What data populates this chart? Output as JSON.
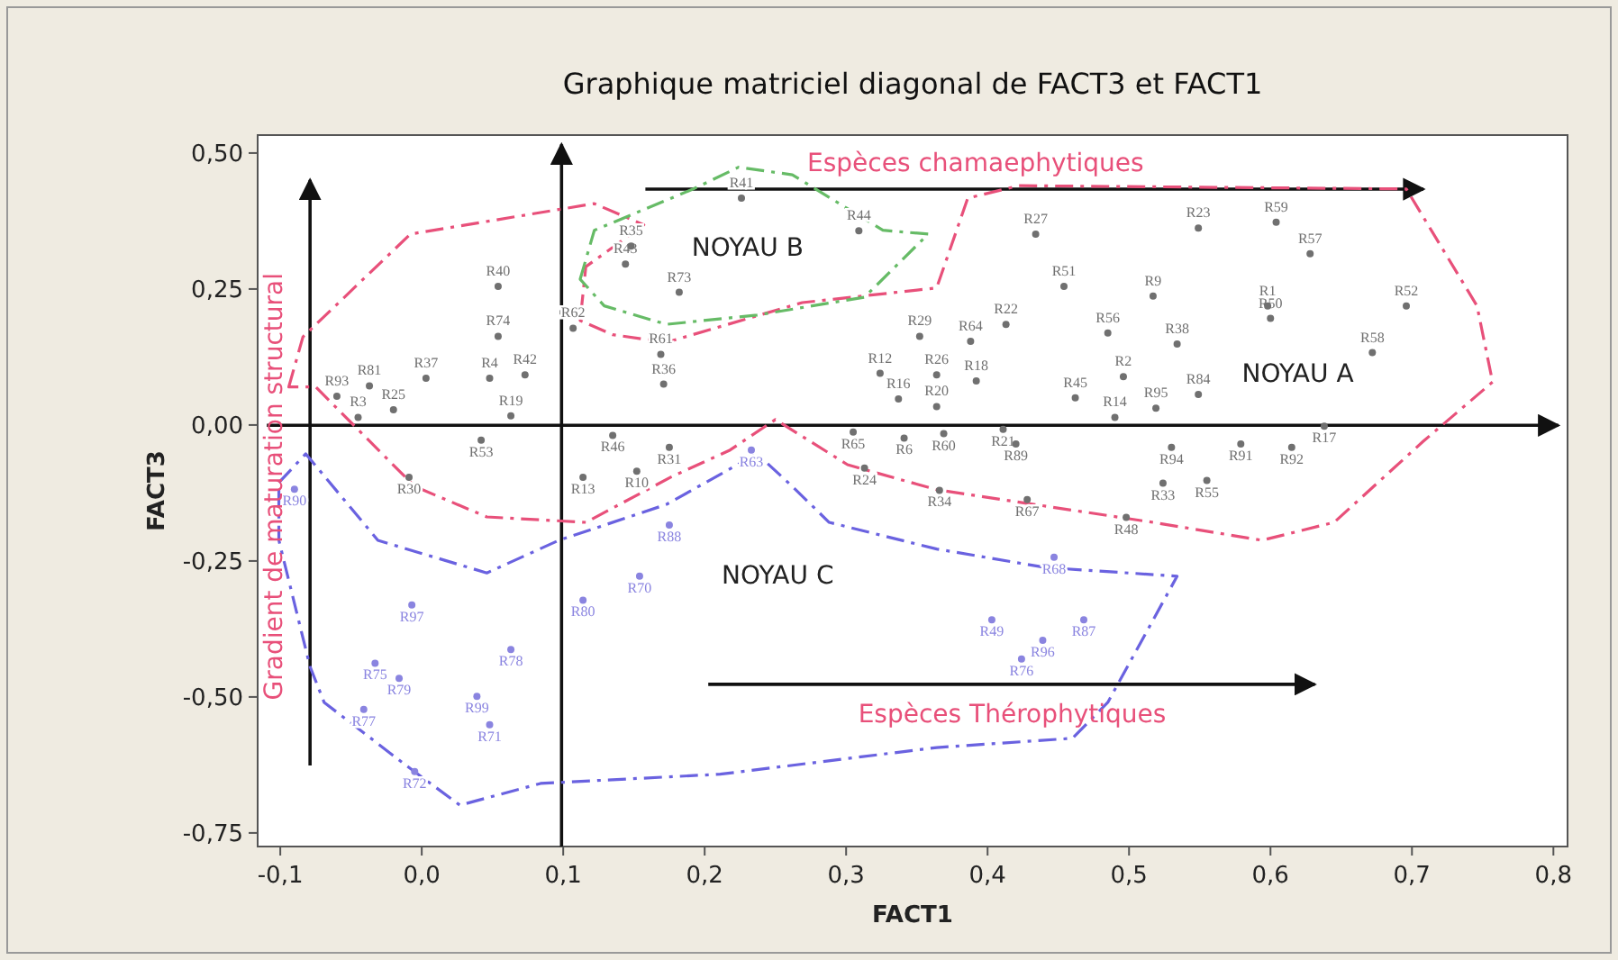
{
  "chart_data": {
    "type": "scatter",
    "title": "Graphique matriciel diagonal de FACT3 et FACT1",
    "xlabel": "FACT1",
    "ylabel": "FACT3",
    "annotations": [
      "Espèces chamaephytiques",
      "NOYAU B",
      "NOYAU A",
      "NOYAU C",
      "Espèces Thérophytiques",
      "Gradient de maturation structural"
    ],
    "xlim": [
      -0.116,
      0.81
    ],
    "ylim": [
      -0.775,
      0.533
    ],
    "xticks": [
      {
        "value": -0.1,
        "label": "-0,1"
      },
      {
        "value": 0,
        "label": "0,0"
      },
      {
        "value": 0.1,
        "label": "0,1"
      },
      {
        "value": 0.2,
        "label": "0,2"
      },
      {
        "value": 0.3,
        "label": "0,3"
      },
      {
        "value": 0.4,
        "label": "0,4"
      },
      {
        "value": 0.5,
        "label": "0,5"
      },
      {
        "value": 0.6,
        "label": "0,6"
      },
      {
        "value": 0.7,
        "label": "0,7"
      },
      {
        "value": 0.8,
        "label": "0,8"
      }
    ],
    "yticks": [
      {
        "value": 0.5,
        "label": "0,50"
      },
      {
        "value": 0.25,
        "label": "0,25"
      },
      {
        "value": 0,
        "label": "0,00"
      },
      {
        "value": -0.25,
        "label": "-0,25"
      },
      {
        "value": -0.5,
        "label": "-0,50"
      },
      {
        "value": -0.75,
        "label": "-0,75"
      }
    ],
    "marker": "circle",
    "series": [
      {
        "color": "#707070",
        "x": [
          0.054,
          0.054,
          0.048,
          0.073,
          0.003,
          -0.037,
          -0.06,
          -0.045,
          -0.02,
          0.063,
          0.042,
          0.107,
          -0.009,
          0.114,
          0.152,
          0.169,
          0.171,
          0.175,
          0.135,
          0.148,
          0.144,
          0.226,
          0.309,
          0.182,
          0.434,
          0.454,
          0.413,
          0.352,
          0.388,
          0.324,
          0.364,
          0.392,
          0.337,
          0.364,
          0.462,
          0.305,
          0.341,
          0.369,
          0.411,
          0.42,
          0.313,
          0.366,
          0.428,
          0.498,
          0.524,
          0.555,
          0.549,
          0.604,
          0.628,
          0.517,
          0.598,
          0.6,
          0.696,
          0.485,
          0.534,
          0.672,
          0.496,
          0.549,
          0.638,
          0.579,
          0.615,
          0.53,
          0.49,
          0.519
        ],
        "values": [
          0.255,
          0.163,
          0.086,
          0.092,
          0.086,
          0.072,
          0.053,
          0.014,
          0.028,
          0.017,
          -0.028,
          0.178,
          -0.096,
          -0.096,
          -0.085,
          0.13,
          0.075,
          -0.041,
          -0.019,
          0.329,
          0.296,
          0.417,
          0.357,
          0.244,
          0.351,
          0.255,
          0.185,
          0.163,
          0.154,
          0.095,
          0.092,
          0.081,
          0.048,
          0.034,
          0.05,
          -0.013,
          -0.024,
          -0.016,
          -0.008,
          -0.035,
          -0.079,
          -0.12,
          -0.137,
          -0.17,
          -0.107,
          -0.102,
          0.362,
          0.373,
          0.315,
          0.237,
          0.219,
          0.196,
          0.219,
          0.169,
          0.149,
          0.133,
          0.089,
          0.056,
          -0.002,
          -0.035,
          -0.041,
          -0.041,
          0.014,
          0.031
        ],
        "value_labels": [
          "R40",
          "R74",
          "R4",
          "R42",
          "R37",
          "R81",
          "R93",
          "R3",
          "R25",
          "R19",
          "R53",
          "R62",
          "R30",
          "R13",
          "R10",
          "R61",
          "R36",
          "R31",
          "R46",
          "R35",
          "R43",
          "R41",
          "R44",
          "R73",
          "R27",
          "R51",
          "R22",
          "R29",
          "R64",
          "R12",
          "R26",
          "R18",
          "R16",
          "R20",
          "R45",
          "R65",
          "R6",
          "R60",
          "R21",
          "R89",
          "R24",
          "R34",
          "R67",
          "R48",
          "R33",
          "R55",
          "R23",
          "R59",
          "R57",
          "R9",
          "R1",
          "R50",
          "R52",
          "R56",
          "R38",
          "R58",
          "R2",
          "R84",
          "R17",
          "R91",
          "R92",
          "R94",
          "R14",
          "R95"
        ]
      },
      {
        "color": "#8a84e0",
        "x": [
          0.233,
          0.447,
          0.403,
          0.468,
          0.439,
          0.424,
          -0.09,
          -0.007,
          0.063,
          -0.033,
          -0.016,
          -0.041,
          0.039,
          0.048,
          -0.005,
          0.114,
          0.154,
          0.175
        ],
        "values": [
          -0.046,
          -0.243,
          -0.358,
          -0.358,
          -0.396,
          -0.43,
          -0.118,
          -0.331,
          -0.413,
          -0.438,
          -0.466,
          -0.523,
          -0.499,
          -0.551,
          -0.637,
          -0.322,
          -0.278,
          -0.184
        ],
        "value_labels": [
          "R63",
          "R68",
          "R49",
          "R87",
          "R96",
          "R76",
          "R90",
          "R97",
          "R78",
          "R75",
          "R79",
          "R77",
          "R99",
          "R71",
          "R72",
          "R80",
          "R70",
          "R88"
        ]
      }
    ]
  }
}
